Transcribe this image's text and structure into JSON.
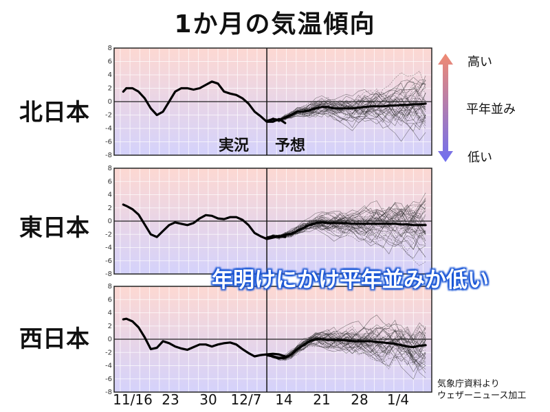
{
  "title": "1か月の気温傾向",
  "x_tick_labels": [
    "11/16",
    "23",
    "30",
    "12/7",
    "14",
    "21",
    "28",
    "1/4"
  ],
  "phase_labels": {
    "observed": "実況",
    "forecast": "予想"
  },
  "legend": {
    "high": "高い",
    "normal": "平年並み",
    "low": "低い",
    "color_high": "#f08a72",
    "color_low": "#6f6ff0"
  },
  "headline": "年明けにかけ平年並みか低い",
  "credit": {
    "line1": "気象庁資料より",
    "line2": "ウェザーニュース加工"
  },
  "colors": {
    "top": "#fdd8d2",
    "bottom": "#d4d2fb",
    "line": "#000000"
  },
  "chart_data": [
    {
      "type": "line",
      "region": "北日本",
      "ylim": [
        -8,
        8
      ],
      "y_ticks": [
        8,
        6,
        4,
        2,
        0,
        -2,
        -4,
        -6,
        -8
      ],
      "x_range": [
        0,
        52
      ],
      "forecast_start": 25,
      "series": [
        {
          "values": [
            [
              1.5,
              1.5
            ],
            [
              2,
              2
            ],
            [
              3,
              2
            ],
            [
              4,
              1.5
            ],
            [
              5,
              0.5
            ],
            [
              6,
              -1
            ],
            [
              7,
              -2
            ],
            [
              8,
              -1.5
            ],
            [
              9,
              0
            ],
            [
              10,
              1.5
            ],
            [
              11,
              2
            ],
            [
              12,
              2
            ],
            [
              13,
              1.8
            ],
            [
              14,
              2
            ],
            [
              15,
              2.5
            ],
            [
              16,
              3
            ],
            [
              17,
              2.7
            ],
            [
              18,
              1.5
            ],
            [
              19,
              1.2
            ],
            [
              20,
              1
            ],
            [
              21,
              0.5
            ],
            [
              22,
              -0.3
            ],
            [
              23,
              -1.5
            ],
            [
              24,
              -2.2
            ],
            [
              25,
              -3
            ],
            [
              26,
              -3
            ],
            [
              27,
              -2.6
            ],
            [
              28,
              -3.2
            ]
          ]
        },
        {
          "values": [
            [
              25,
              -2.9
            ],
            [
              26,
              -2.6
            ],
            [
              27,
              -2.8
            ],
            [
              28,
              -2.4
            ],
            [
              29,
              -2
            ],
            [
              30,
              -1.5
            ],
            [
              31,
              -1.5
            ],
            [
              32,
              -1.3
            ],
            [
              33,
              -1
            ],
            [
              34,
              -0.8
            ],
            [
              35,
              -0.8
            ],
            [
              36,
              -1
            ],
            [
              37,
              -1
            ],
            [
              38,
              -1
            ],
            [
              39,
              -1
            ],
            [
              40,
              -0.9
            ],
            [
              41,
              -0.8
            ],
            [
              42,
              -0.7
            ],
            [
              43,
              -0.7
            ],
            [
              44,
              -0.7
            ],
            [
              45,
              -0.6
            ],
            [
              46,
              -0.6
            ],
            [
              47,
              -0.5
            ],
            [
              48,
              -0.5
            ],
            [
              49,
              -0.4
            ],
            [
              50,
              -0.4
            ],
            [
              51,
              -0.3
            ]
          ]
        }
      ]
    },
    {
      "type": "line",
      "region": "東日本",
      "ylim": [
        -8,
        8
      ],
      "y_ticks": [
        8,
        6,
        4,
        2,
        0,
        -2,
        -4,
        -6,
        -8
      ],
      "x_range": [
        0,
        52
      ],
      "forecast_start": 25,
      "series": [
        {
          "values": [
            [
              1.5,
              2.5
            ],
            [
              2,
              2.3
            ],
            [
              3,
              1.8
            ],
            [
              4,
              1
            ],
            [
              5,
              -0.5
            ],
            [
              6,
              -2
            ],
            [
              7,
              -2.4
            ],
            [
              8,
              -1.5
            ],
            [
              9,
              -0.6
            ],
            [
              10,
              -0.2
            ],
            [
              11,
              -0.4
            ],
            [
              12,
              -0.6
            ],
            [
              13,
              -0.3
            ],
            [
              14,
              0.4
            ],
            [
              15,
              0.9
            ],
            [
              16,
              0.8
            ],
            [
              17,
              0.4
            ],
            [
              18,
              0.3
            ],
            [
              19,
              0.6
            ],
            [
              20,
              0.6
            ],
            [
              21,
              0.2
            ],
            [
              22,
              -0.6
            ],
            [
              23,
              -1.8
            ],
            [
              24,
              -2.3
            ],
            [
              25,
              -2.7
            ],
            [
              26,
              -2.5
            ],
            [
              27,
              -2.3
            ],
            [
              28,
              -2.4
            ]
          ]
        },
        {
          "values": [
            [
              25,
              -2.5
            ],
            [
              26,
              -2.3
            ],
            [
              27,
              -2.4
            ],
            [
              28,
              -2.1
            ],
            [
              29,
              -1.9
            ],
            [
              30,
              -1.5
            ],
            [
              31,
              -1
            ],
            [
              32,
              -0.6
            ],
            [
              33,
              -0.3
            ],
            [
              34,
              -0.2
            ],
            [
              35,
              -0.3
            ],
            [
              36,
              -0.3
            ],
            [
              37,
              -0.3
            ],
            [
              38,
              -0.3
            ],
            [
              39,
              -0.4
            ],
            [
              40,
              -0.4
            ],
            [
              41,
              -0.4
            ],
            [
              42,
              -0.4
            ],
            [
              43,
              -0.4
            ],
            [
              44,
              -0.4
            ],
            [
              45,
              -0.4
            ],
            [
              46,
              -0.4
            ],
            [
              47,
              -0.5
            ],
            [
              48,
              -0.5
            ],
            [
              49,
              -0.6
            ],
            [
              50,
              -0.6
            ],
            [
              51,
              -0.6
            ]
          ]
        }
      ]
    },
    {
      "type": "line",
      "region": "西日本",
      "ylim": [
        -8,
        8
      ],
      "y_ticks": [
        8,
        6,
        4,
        2,
        0,
        -2,
        -4,
        -6,
        -8
      ],
      "x_range": [
        0,
        52
      ],
      "forecast_start": 25,
      "series": [
        {
          "values": [
            [
              1.5,
              3
            ],
            [
              2,
              3.1
            ],
            [
              3,
              2.7
            ],
            [
              4,
              1.8
            ],
            [
              5,
              0.3
            ],
            [
              6,
              -1.5
            ],
            [
              7,
              -1.3
            ],
            [
              8,
              -0.3
            ],
            [
              9,
              -0.6
            ],
            [
              10,
              -1.1
            ],
            [
              11,
              -1.4
            ],
            [
              12,
              -1.6
            ],
            [
              13,
              -1.2
            ],
            [
              14,
              -0.8
            ],
            [
              15,
              -0.8
            ],
            [
              16,
              -1.1
            ],
            [
              17,
              -0.8
            ],
            [
              18,
              -0.6
            ],
            [
              19,
              -0.5
            ],
            [
              20,
              -0.8
            ],
            [
              21,
              -1.5
            ],
            [
              22,
              -2.1
            ],
            [
              23,
              -2.6
            ],
            [
              24,
              -2.4
            ],
            [
              25,
              -2.3
            ],
            [
              26,
              -2.2
            ],
            [
              27,
              -2.3
            ],
            [
              28,
              -2.6
            ]
          ]
        },
        {
          "values": [
            [
              25,
              -2.4
            ],
            [
              26,
              -2.6
            ],
            [
              27,
              -2.9
            ],
            [
              28,
              -2.8
            ],
            [
              29,
              -2.3
            ],
            [
              30,
              -1.5
            ],
            [
              31,
              -0.9
            ],
            [
              32,
              -0.3
            ],
            [
              33,
              0
            ],
            [
              34,
              0
            ],
            [
              35,
              -0.1
            ],
            [
              36,
              -0.1
            ],
            [
              37,
              -0.1
            ],
            [
              38,
              -0.2
            ],
            [
              39,
              -0.3
            ],
            [
              40,
              -0.3
            ],
            [
              41,
              -0.3
            ],
            [
              42,
              -0.3
            ],
            [
              43,
              -0.4
            ],
            [
              44,
              -0.5
            ],
            [
              45,
              -0.6
            ],
            [
              46,
              -0.7
            ],
            [
              47,
              -0.9
            ],
            [
              48,
              -1.1
            ],
            [
              49,
              -1.2
            ],
            [
              50,
              -1.0
            ],
            [
              51,
              -0.9
            ]
          ]
        }
      ]
    }
  ]
}
